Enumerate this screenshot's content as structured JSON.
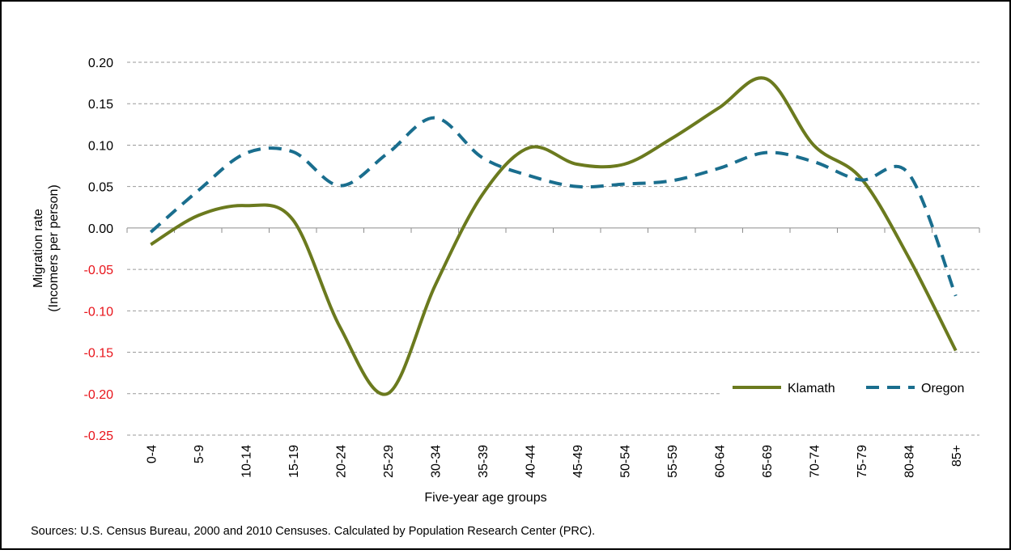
{
  "chart_data": {
    "type": "line",
    "ylabel": [
      "Migration rate",
      "(Incomers per person)"
    ],
    "xlabel": "Five-year age groups",
    "source": "Sources: U.S. Census Bureau, 2000 and 2010 Censuses. Calculated by Population Research  Center (PRC).",
    "categories": [
      "0-4",
      "5-9",
      "10-14",
      "15-19",
      "20-24",
      "25-29",
      "30-34",
      "35-39",
      "40-44",
      "45-49",
      "50-54",
      "55-59",
      "60-64",
      "65-69",
      "70-74",
      "75-79",
      "80-84",
      "85+"
    ],
    "series": [
      {
        "name": "Klamath",
        "color": "#6b7a1e",
        "dash": false,
        "values": [
          -0.02,
          0.015,
          0.027,
          0.01,
          -0.12,
          -0.2,
          -0.07,
          0.04,
          0.097,
          0.077,
          0.077,
          0.108,
          0.145,
          0.18,
          0.1,
          0.06,
          -0.035,
          -0.148
        ]
      },
      {
        "name": "Oregon",
        "color": "#1a6e8e",
        "dash": true,
        "values": [
          -0.005,
          0.045,
          0.09,
          0.092,
          0.051,
          0.09,
          0.133,
          0.085,
          0.063,
          0.05,
          0.053,
          0.057,
          0.072,
          0.091,
          0.08,
          0.058,
          0.066,
          -0.082
        ]
      }
    ],
    "ylim": [
      -0.25,
      0.2
    ],
    "yticks": [
      {
        "value": -0.25,
        "label": "-0.25"
      },
      {
        "value": -0.2,
        "label": "-0.20"
      },
      {
        "value": -0.15,
        "label": "-0.15"
      },
      {
        "value": -0.1,
        "label": "-0.10"
      },
      {
        "value": -0.05,
        "label": "-0.05"
      },
      {
        "value": 0,
        "label": "0.00"
      },
      {
        "value": 0.05,
        "label": "0.05"
      },
      {
        "value": 0.1,
        "label": "0.10"
      },
      {
        "value": 0.15,
        "label": "0.15"
      },
      {
        "value": 0.2,
        "label": "0.20"
      }
    ],
    "negative_tick_color": "#e8141b",
    "grid": true,
    "smooth": true,
    "legend": "lower right"
  }
}
